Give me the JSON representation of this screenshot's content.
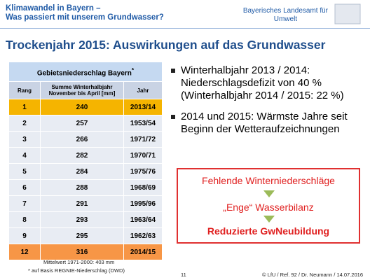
{
  "header": {
    "title_lines": [
      "Klimawandel in Bayern –",
      "Was passiert mit unserem Grundwasser?"
    ],
    "org_lines": [
      "Bayerisches Landesamt für",
      "Umwelt"
    ]
  },
  "slide_title": "Trockenjahr 2015: Auswirkungen auf das Grundwasser",
  "table": {
    "caption": "Gebietsniederschlag Bayern",
    "caption_mark": "*",
    "headers": [
      "Rang",
      "Summe Winterhalbjahr November bis April [mm]",
      "Jahr"
    ],
    "rows": [
      [
        1,
        240,
        "2013/14"
      ],
      [
        2,
        257,
        "1953/54"
      ],
      [
        3,
        266,
        "1971/72"
      ],
      [
        4,
        282,
        "1970/71"
      ],
      [
        5,
        284,
        "1975/76"
      ],
      [
        6,
        288,
        "1968/69"
      ],
      [
        7,
        291,
        "1995/96"
      ],
      [
        8,
        293,
        "1963/64"
      ],
      [
        9,
        295,
        "1962/63"
      ],
      [
        12,
        316,
        "2014/15"
      ]
    ]
  },
  "bullets": [
    [
      "Winterhalbjahr 2013 / 2014:",
      "Niederschlagsdefizit von 40 %",
      "(Winterhalbjahr 2014 / 2015: 22 %)"
    ],
    [
      "2014 und 2015: Wärmste Jahre seit",
      "Beginn der Wetteraufzeichnungen"
    ]
  ],
  "box": [
    "Fehlende Winterniederschläge",
    "„Enge“ Wasserbilanz",
    "Reduzierte GwNeubildung"
  ],
  "footnotes": [
    "Mittelwert 1971-2000:  403 mm",
    "* auf Basis REGNIE-Niederschlag (DWD)"
  ],
  "footer": {
    "page": "11",
    "credit": "© LfU / Ref. 92 / Dr. Neumann / 14.07.2016"
  }
}
